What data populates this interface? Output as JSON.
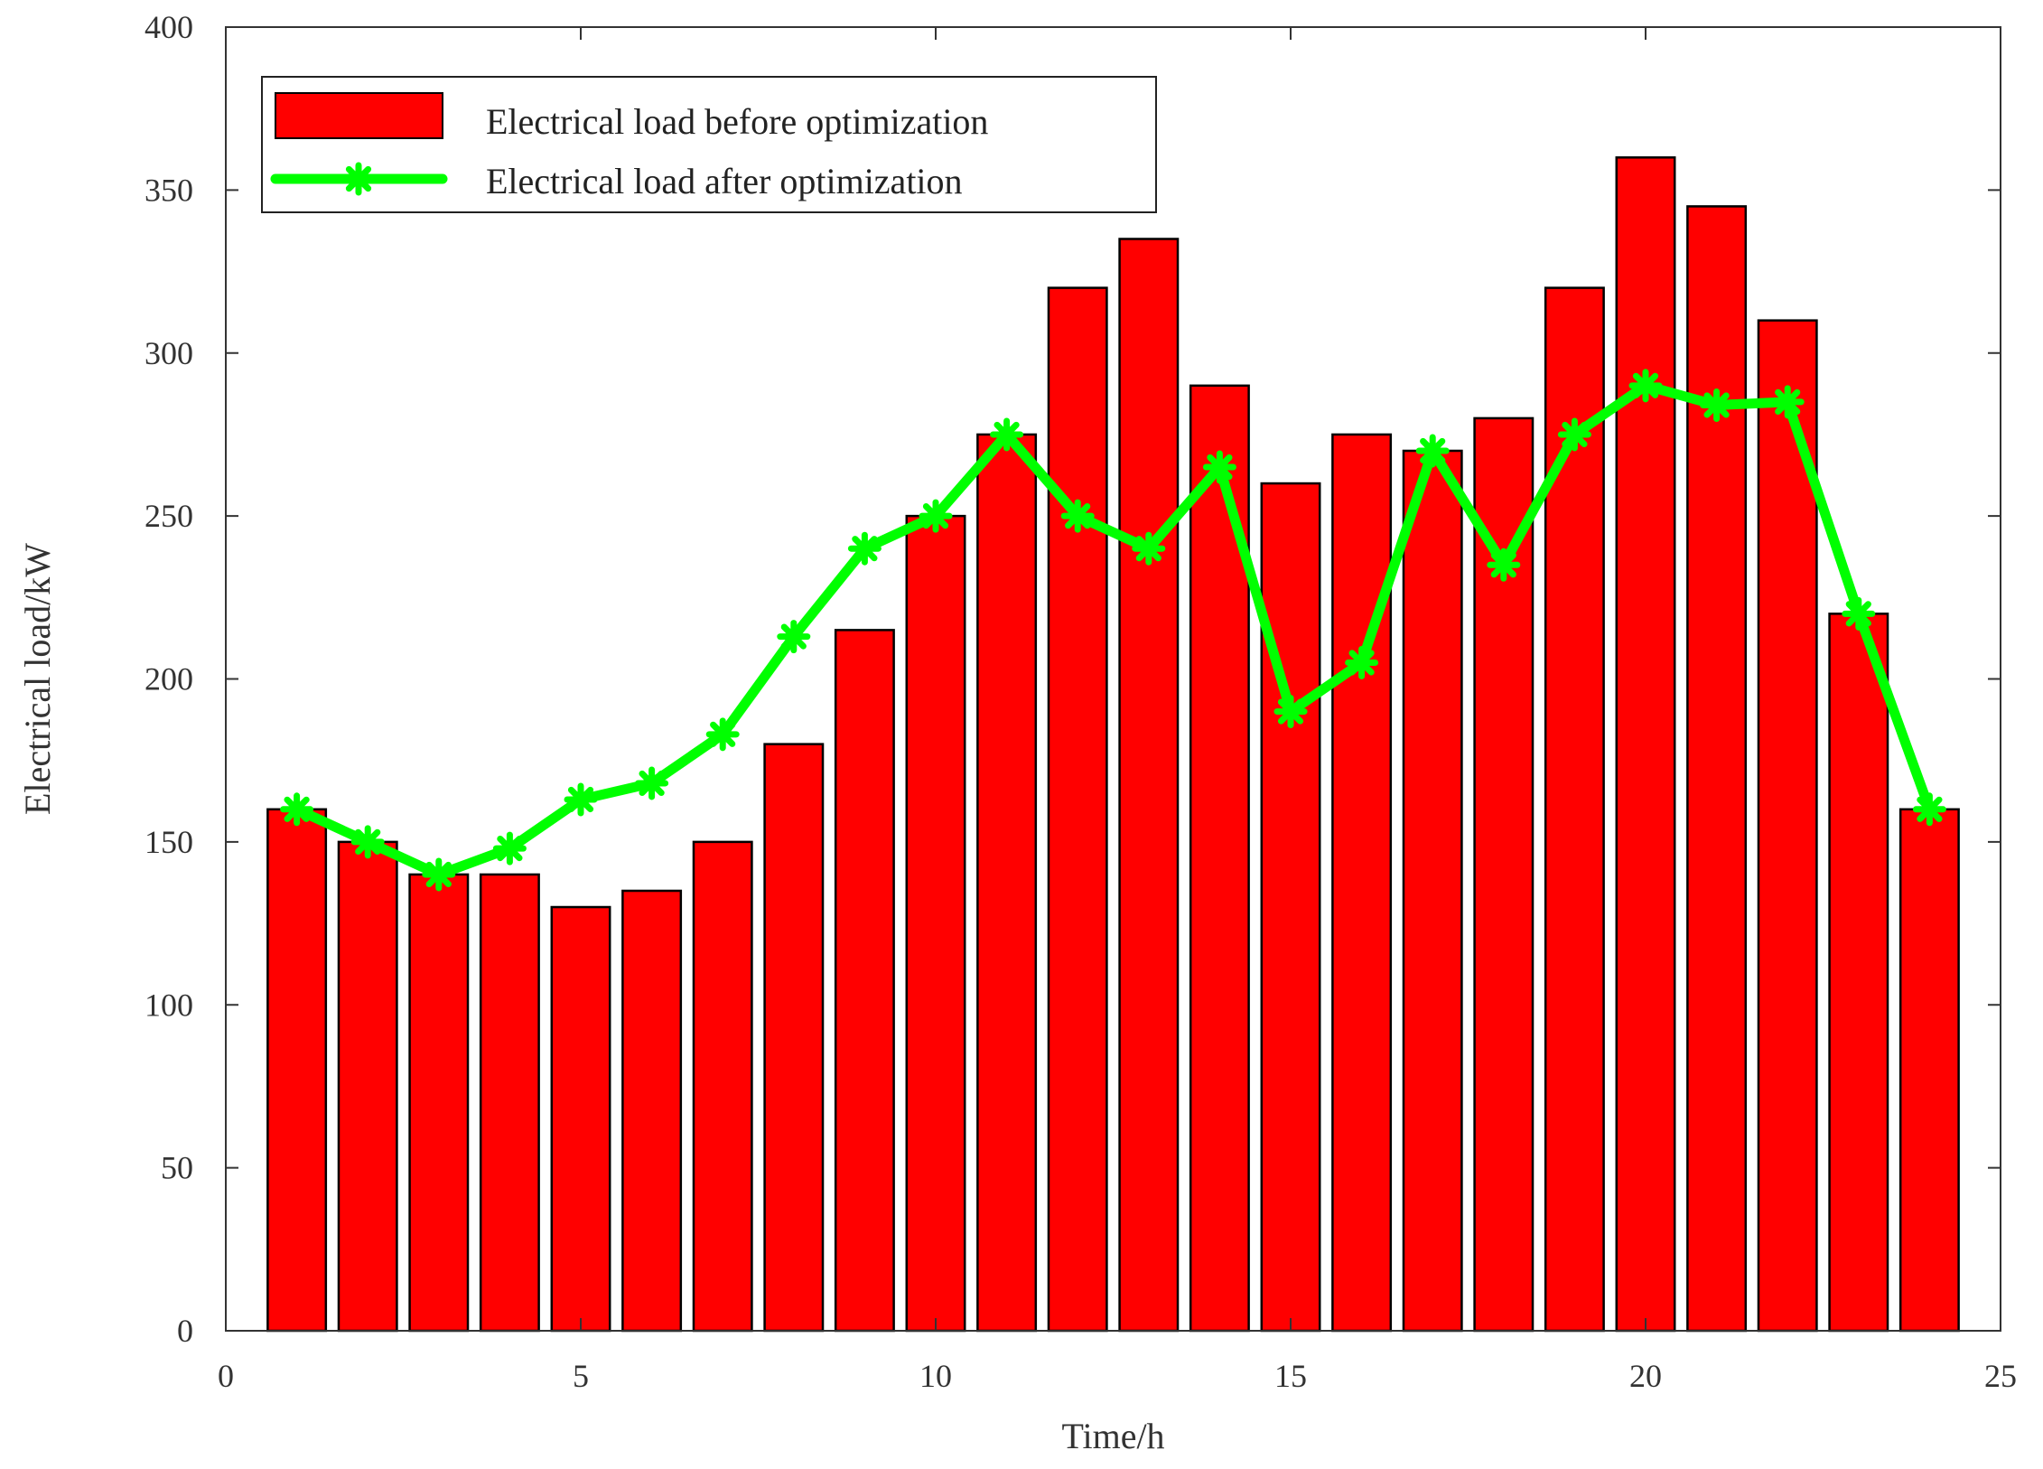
{
  "chart_data": {
    "type": "bar",
    "xlabel": "Time/h",
    "ylabel": "Electrical load/kW",
    "xlim": [
      0,
      25
    ],
    "ylim": [
      0,
      400
    ],
    "xticks": [
      0,
      5,
      10,
      15,
      20,
      25
    ],
    "yticks": [
      0,
      50,
      100,
      150,
      200,
      250,
      300,
      350,
      400
    ],
    "x": [
      1,
      2,
      3,
      4,
      5,
      6,
      7,
      8,
      9,
      10,
      11,
      12,
      13,
      14,
      15,
      16,
      17,
      18,
      19,
      20,
      21,
      22,
      23,
      24
    ],
    "series": [
      {
        "name": "Electrical load before optimization",
        "kind": "bar",
        "color": "#ff0000",
        "values": [
          160,
          150,
          140,
          140,
          130,
          135,
          150,
          180,
          215,
          250,
          275,
          320,
          335,
          290,
          260,
          275,
          270,
          280,
          320,
          360,
          345,
          310,
          220,
          160
        ]
      },
      {
        "name": "Electrical load after optimization",
        "kind": "line",
        "marker": "asterisk",
        "color": "#00ff00",
        "values": [
          160,
          150,
          140,
          148,
          163,
          168,
          183,
          213,
          240,
          250,
          275,
          250,
          240,
          265,
          190,
          205,
          270,
          235,
          275,
          290,
          284,
          285,
          220,
          160
        ]
      }
    ],
    "legend": {
      "position": "top-left",
      "box": true
    },
    "grid": false
  }
}
